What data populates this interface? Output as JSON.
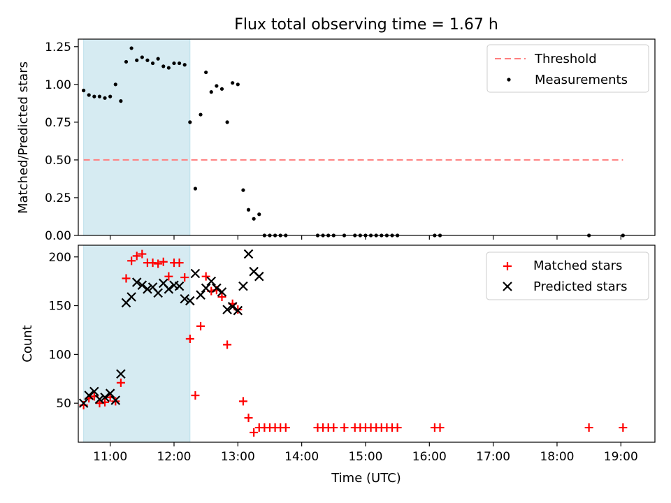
{
  "title": "Flux total observing time = 1.67 h",
  "colors": {
    "threshold": "#ff7f7f",
    "measurement": "#000000",
    "matched": "#ff0000",
    "predicted": "#000000",
    "span": "#add8e6"
  },
  "chart_data": [
    {
      "type": "scatter",
      "ylabel": "Matched/Predicted stars",
      "xlim": [
        "10:30",
        "19:32"
      ],
      "ylim": [
        0,
        1.3
      ],
      "yticks": [
        "0.00",
        "0.25",
        "0.50",
        "0.75",
        "1.00",
        "1.25"
      ],
      "shaded_span": [
        "10:35",
        "12:15"
      ],
      "legend": {
        "position": "top-right",
        "threshold_label": "Threshold",
        "measurements_label": "Measurements"
      },
      "threshold": {
        "value": 0.5,
        "x_range": [
          "10:35",
          "19:02"
        ]
      },
      "measurements": [
        {
          "x": "10:35",
          "y": 0.96
        },
        {
          "x": "10:40",
          "y": 0.93
        },
        {
          "x": "10:45",
          "y": 0.92
        },
        {
          "x": "10:50",
          "y": 0.92
        },
        {
          "x": "10:55",
          "y": 0.91
        },
        {
          "x": "11:00",
          "y": 0.92
        },
        {
          "x": "11:05",
          "y": 1.0
        },
        {
          "x": "11:10",
          "y": 0.89
        },
        {
          "x": "11:15",
          "y": 1.15
        },
        {
          "x": "11:20",
          "y": 1.24
        },
        {
          "x": "11:25",
          "y": 1.16
        },
        {
          "x": "11:30",
          "y": 1.18
        },
        {
          "x": "11:35",
          "y": 1.16
        },
        {
          "x": "11:40",
          "y": 1.14
        },
        {
          "x": "11:45",
          "y": 1.17
        },
        {
          "x": "11:50",
          "y": 1.12
        },
        {
          "x": "11:55",
          "y": 1.11
        },
        {
          "x": "12:00",
          "y": 1.14
        },
        {
          "x": "12:05",
          "y": 1.14
        },
        {
          "x": "12:10",
          "y": 1.13
        },
        {
          "x": "12:15",
          "y": 0.75
        },
        {
          "x": "12:20",
          "y": 0.31
        },
        {
          "x": "12:25",
          "y": 0.8
        },
        {
          "x": "12:30",
          "y": 1.08
        },
        {
          "x": "12:35",
          "y": 0.95
        },
        {
          "x": "12:40",
          "y": 0.99
        },
        {
          "x": "12:45",
          "y": 0.97
        },
        {
          "x": "12:50",
          "y": 0.75
        },
        {
          "x": "12:55",
          "y": 1.01
        },
        {
          "x": "13:00",
          "y": 1.0
        },
        {
          "x": "13:05",
          "y": 0.3
        },
        {
          "x": "13:10",
          "y": 0.17
        },
        {
          "x": "13:15",
          "y": 0.11
        },
        {
          "x": "13:20",
          "y": 0.14
        },
        {
          "x": "13:25",
          "y": 0.0
        },
        {
          "x": "13:30",
          "y": 0.0
        },
        {
          "x": "13:35",
          "y": 0.0
        },
        {
          "x": "13:40",
          "y": 0.0
        },
        {
          "x": "13:45",
          "y": 0.0
        },
        {
          "x": "14:15",
          "y": 0.0
        },
        {
          "x": "14:20",
          "y": 0.0
        },
        {
          "x": "14:25",
          "y": 0.0
        },
        {
          "x": "14:30",
          "y": 0.0
        },
        {
          "x": "14:40",
          "y": 0.0
        },
        {
          "x": "14:50",
          "y": 0.0
        },
        {
          "x": "14:55",
          "y": 0.0
        },
        {
          "x": "15:00",
          "y": 0.0
        },
        {
          "x": "15:05",
          "y": 0.0
        },
        {
          "x": "15:10",
          "y": 0.0
        },
        {
          "x": "15:15",
          "y": 0.0
        },
        {
          "x": "15:20",
          "y": 0.0
        },
        {
          "x": "15:25",
          "y": 0.0
        },
        {
          "x": "15:30",
          "y": 0.0
        },
        {
          "x": "16:05",
          "y": 0.0
        },
        {
          "x": "16:10",
          "y": 0.0
        },
        {
          "x": "18:30",
          "y": 0.0
        },
        {
          "x": "19:02",
          "y": 0.0
        }
      ]
    },
    {
      "type": "scatter",
      "xlabel": "Time (UTC)",
      "ylabel": "Count",
      "xlim": [
        "10:30",
        "19:32"
      ],
      "ylim": [
        10,
        212
      ],
      "xticks": [
        "11:00",
        "12:00",
        "13:00",
        "14:00",
        "15:00",
        "16:00",
        "17:00",
        "18:00",
        "19:00"
      ],
      "yticks": [
        "50",
        "100",
        "150",
        "200"
      ],
      "shaded_span": [
        "10:35",
        "12:15"
      ],
      "legend": {
        "position": "top-right",
        "matched_label": "Matched stars",
        "predicted_label": "Predicted stars"
      },
      "series": [
        {
          "name": "Matched stars",
          "points": [
            {
              "x": "10:35",
              "y": 48
            },
            {
              "x": "10:40",
              "y": 55
            },
            {
              "x": "10:45",
              "y": 57
            },
            {
              "x": "10:50",
              "y": 50
            },
            {
              "x": "10:55",
              "y": 51
            },
            {
              "x": "11:00",
              "y": 56
            },
            {
              "x": "11:05",
              "y": 52
            },
            {
              "x": "11:10",
              "y": 71
            },
            {
              "x": "11:15",
              "y": 178
            },
            {
              "x": "11:20",
              "y": 196
            },
            {
              "x": "11:25",
              "y": 201
            },
            {
              "x": "11:30",
              "y": 203
            },
            {
              "x": "11:35",
              "y": 194
            },
            {
              "x": "11:40",
              "y": 194
            },
            {
              "x": "11:45",
              "y": 193
            },
            {
              "x": "11:50",
              "y": 195
            },
            {
              "x": "11:55",
              "y": 180
            },
            {
              "x": "12:00",
              "y": 194
            },
            {
              "x": "12:05",
              "y": 194
            },
            {
              "x": "12:10",
              "y": 179
            },
            {
              "x": "12:15",
              "y": 116
            },
            {
              "x": "12:20",
              "y": 58
            },
            {
              "x": "12:25",
              "y": 129
            },
            {
              "x": "12:30",
              "y": 180
            },
            {
              "x": "12:35",
              "y": 165
            },
            {
              "x": "12:40",
              "y": 166
            },
            {
              "x": "12:45",
              "y": 159
            },
            {
              "x": "12:50",
              "y": 110
            },
            {
              "x": "12:55",
              "y": 152
            },
            {
              "x": "13:00",
              "y": 146
            },
            {
              "x": "13:05",
              "y": 52
            },
            {
              "x": "13:10",
              "y": 35
            },
            {
              "x": "13:15",
              "y": 20
            },
            {
              "x": "13:20",
              "y": 25
            },
            {
              "x": "13:25",
              "y": 25
            },
            {
              "x": "13:30",
              "y": 25
            },
            {
              "x": "13:35",
              "y": 25
            },
            {
              "x": "13:40",
              "y": 25
            },
            {
              "x": "13:45",
              "y": 25
            },
            {
              "x": "14:15",
              "y": 25
            },
            {
              "x": "14:20",
              "y": 25
            },
            {
              "x": "14:25",
              "y": 25
            },
            {
              "x": "14:30",
              "y": 25
            },
            {
              "x": "14:40",
              "y": 25
            },
            {
              "x": "14:50",
              "y": 25
            },
            {
              "x": "14:55",
              "y": 25
            },
            {
              "x": "15:00",
              "y": 25
            },
            {
              "x": "15:05",
              "y": 25
            },
            {
              "x": "15:10",
              "y": 25
            },
            {
              "x": "15:15",
              "y": 25
            },
            {
              "x": "15:20",
              "y": 25
            },
            {
              "x": "15:25",
              "y": 25
            },
            {
              "x": "15:30",
              "y": 25
            },
            {
              "x": "16:05",
              "y": 25
            },
            {
              "x": "16:10",
              "y": 25
            },
            {
              "x": "18:30",
              "y": 25
            },
            {
              "x": "19:02",
              "y": 25
            }
          ]
        },
        {
          "name": "Predicted stars",
          "points": [
            {
              "x": "10:35",
              "y": 50
            },
            {
              "x": "10:40",
              "y": 58
            },
            {
              "x": "10:45",
              "y": 62
            },
            {
              "x": "10:50",
              "y": 54
            },
            {
              "x": "10:55",
              "y": 56
            },
            {
              "x": "11:00",
              "y": 60
            },
            {
              "x": "11:05",
              "y": 53
            },
            {
              "x": "11:10",
              "y": 80
            },
            {
              "x": "11:15",
              "y": 153
            },
            {
              "x": "11:20",
              "y": 159
            },
            {
              "x": "11:25",
              "y": 174
            },
            {
              "x": "11:30",
              "y": 171
            },
            {
              "x": "11:35",
              "y": 167
            },
            {
              "x": "11:40",
              "y": 169
            },
            {
              "x": "11:45",
              "y": 163
            },
            {
              "x": "11:50",
              "y": 173
            },
            {
              "x": "11:55",
              "y": 167
            },
            {
              "x": "12:00",
              "y": 171
            },
            {
              "x": "12:05",
              "y": 170
            },
            {
              "x": "12:10",
              "y": 157
            },
            {
              "x": "12:15",
              "y": 155
            },
            {
              "x": "12:20",
              "y": 183
            },
            {
              "x": "12:25",
              "y": 161
            },
            {
              "x": "12:30",
              "y": 168
            },
            {
              "x": "12:35",
              "y": 175
            },
            {
              "x": "12:40",
              "y": 168
            },
            {
              "x": "12:45",
              "y": 164
            },
            {
              "x": "12:50",
              "y": 146
            },
            {
              "x": "12:55",
              "y": 149
            },
            {
              "x": "13:00",
              "y": 145
            },
            {
              "x": "13:05",
              "y": 170
            },
            {
              "x": "13:10",
              "y": 203
            },
            {
              "x": "13:15",
              "y": 185
            },
            {
              "x": "13:20",
              "y": 180
            }
          ]
        }
      ]
    }
  ]
}
